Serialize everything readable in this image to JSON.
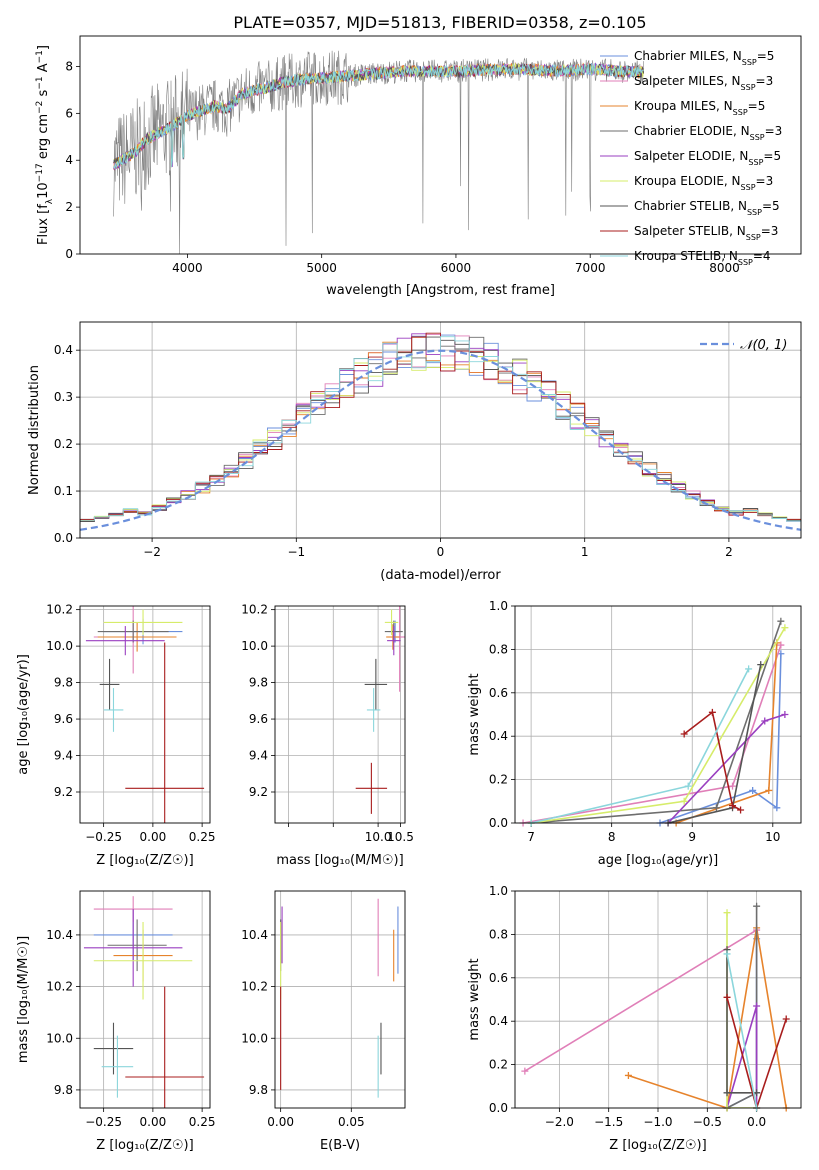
{
  "figure_title": "PLATE=0357, MJD=51813, FIBERID=0358, z=0.105",
  "colors": {
    "Chabrier MILES": "#6a8fdc",
    "Salpeter MILES": "#e07fb8",
    "Kroupa MILES": "#e6832c",
    "Chabrier ELODIE": "#6e6e6e",
    "Salpeter ELODIE": "#9a3fc0",
    "Kroupa ELODIE": "#d6ec6a",
    "Chabrier STELIB": "#555555",
    "Salpeter STELIB": "#a81d1d",
    "Kroupa STELIB": "#8bd6dc",
    "data": "#808080",
    "normal": "#6a8fdc"
  },
  "chart_data": [
    {
      "id": "spectrum",
      "type": "line",
      "title": "",
      "xlabel": "wavelength [Angstrom, rest frame]",
      "ylabel": "Flux [f",
      "ylabel_parts": [
        "Flux [f",
        "λ",
        "10",
        "−17",
        " erg cm",
        "−2",
        " s",
        "−1",
        " A",
        "−1",
        "]"
      ],
      "xlim": [
        3200,
        8570
      ],
      "ylim": [
        0,
        9.3
      ],
      "xticks": [
        4000,
        5000,
        6000,
        7000,
        8000
      ],
      "yticks": [
        0,
        2,
        4,
        6,
        8
      ],
      "grid": false,
      "legend_position": "right",
      "legend": [
        {
          "label": "Chabrier MILES, N",
          "sub": "SSP",
          "n": "=5",
          "key": "Chabrier MILES"
        },
        {
          "label": "Salpeter MILES, N",
          "sub": "SSP",
          "n": "=3",
          "key": "Salpeter MILES"
        },
        {
          "label": "Kroupa MILES, N",
          "sub": "SSP",
          "n": "=5",
          "key": "Kroupa MILES"
        },
        {
          "label": "Chabrier ELODIE, N",
          "sub": "SSP",
          "n": "=3",
          "key": "Chabrier ELODIE"
        },
        {
          "label": "Salpeter ELODIE, N",
          "sub": "SSP",
          "n": "=5",
          "key": "Salpeter ELODIE"
        },
        {
          "label": "Kroupa ELODIE, N",
          "sub": "SSP",
          "n": "=3",
          "key": "Kroupa ELODIE"
        },
        {
          "label": "Chabrier STELIB, N",
          "sub": "SSP",
          "n": "=5",
          "key": "Chabrier STELIB"
        },
        {
          "label": "Salpeter STELIB, N",
          "sub": "SSP",
          "n": "=3",
          "key": "Salpeter STELIB"
        },
        {
          "label": "Kroupa STELIB, N",
          "sub": "SSP",
          "n": "=4",
          "key": "Kroupa STELIB"
        }
      ],
      "model_continuum": [
        [
          3450,
          3.8
        ],
        [
          3600,
          4.3
        ],
        [
          3700,
          4.9
        ],
        [
          3800,
          5.2
        ],
        [
          3900,
          5.5
        ],
        [
          4000,
          5.9
        ],
        [
          4100,
          6.1
        ],
        [
          4200,
          6.3
        ],
        [
          4300,
          6.2
        ],
        [
          4400,
          6.8
        ],
        [
          4500,
          7.0
        ],
        [
          4600,
          7.1
        ],
        [
          4700,
          7.3
        ],
        [
          4800,
          7.4
        ],
        [
          4900,
          7.5
        ],
        [
          5000,
          7.5
        ],
        [
          5200,
          7.6
        ],
        [
          5400,
          7.7
        ],
        [
          5600,
          7.8
        ],
        [
          5800,
          7.8
        ],
        [
          6000,
          7.8
        ],
        [
          6200,
          7.85
        ],
        [
          6400,
          7.9
        ],
        [
          6600,
          7.85
        ],
        [
          6800,
          7.8
        ],
        [
          7000,
          7.9
        ],
        [
          7200,
          7.8
        ],
        [
          7400,
          7.75
        ]
      ]
    },
    {
      "id": "residuals",
      "type": "line",
      "title": "",
      "xlabel": "(data-model)/error",
      "ylabel": "Normed distribution",
      "xlim": [
        -2.5,
        2.5
      ],
      "ylim": [
        0,
        0.46
      ],
      "xticks": [
        -2,
        -1,
        0,
        1,
        2
      ],
      "yticks": [
        0.0,
        0.1,
        0.2,
        0.3,
        0.4
      ],
      "grid": true,
      "legend_position": "top-right",
      "legend": [
        {
          "label": "𝒩(0, 1)",
          "key": "normal"
        }
      ],
      "histogram_bin_width": 0.1
    },
    {
      "id": "age-vs-Z",
      "type": "scatter",
      "xlabel": "Z [log₁₀(Z/Z☉)]",
      "ylabel": "age  [log₁₀(age/yr)]",
      "xlim": [
        -0.37,
        0.29
      ],
      "ylim": [
        9.03,
        10.22
      ],
      "xticks": [
        -0.25,
        0.0,
        0.25
      ],
      "xtick_labels": [
        "−0.25",
        "0.00",
        "0.25"
      ],
      "yticks": [
        9.2,
        9.4,
        9.6,
        9.8,
        10.0,
        10.2
      ],
      "grid": true,
      "points": [
        {
          "key": "Chabrier MILES",
          "x": -0.05,
          "y": 10.08,
          "xerr": 0.2,
          "yerr": 0.07
        },
        {
          "key": "Salpeter MILES",
          "x": -0.1,
          "y": 10.05,
          "xerr": 0.2,
          "yerr": 0.2
        },
        {
          "key": "Kroupa MILES",
          "x": -0.08,
          "y": 10.05,
          "xerr": 0.2,
          "yerr": 0.08
        },
        {
          "key": "Chabrier ELODIE",
          "x": -0.1,
          "y": 10.08,
          "xerr": 0.18,
          "yerr": 0.06
        },
        {
          "key": "Salpeter ELODIE",
          "x": -0.14,
          "y": 10.03,
          "xerr": 0.2,
          "yerr": 0.08
        },
        {
          "key": "Kroupa ELODIE",
          "x": -0.05,
          "y": 10.13,
          "xerr": 0.2,
          "yerr": 0.07
        },
        {
          "key": "Chabrier STELIB",
          "x": -0.22,
          "y": 9.79,
          "xerr": 0.05,
          "yerr": 0.14
        },
        {
          "key": "Salpeter STELIB",
          "x": 0.06,
          "y": 9.22,
          "xerr": 0.2,
          "yerr": 0.8
        },
        {
          "key": "Kroupa STELIB",
          "x": -0.2,
          "y": 9.65,
          "xerr": 0.05,
          "yerr": 0.12
        }
      ]
    },
    {
      "id": "age-vs-mass",
      "type": "scatter",
      "xlabel": "mass [log₁₀(M/M☉)]",
      "ylabel": "",
      "xlim": [
        7.7,
        10.6
      ],
      "ylim": [
        9.03,
        10.22
      ],
      "xticks": [
        8.0,
        9.0,
        10.0,
        10.5
      ],
      "xtick_labels": [
        "",
        "",
        "10.0",
        "10.5"
      ],
      "yticks": [
        9.2,
        9.4,
        9.6,
        9.8,
        10.0,
        10.2
      ],
      "grid": true,
      "points": [
        {
          "key": "Chabrier MILES",
          "x": 10.38,
          "y": 10.08,
          "xerr": 0.15,
          "yerr": 0.06
        },
        {
          "key": "Salpeter MILES",
          "x": 10.48,
          "y": 10.05,
          "xerr": 0.15,
          "yerr": 0.3
        },
        {
          "key": "Kroupa MILES",
          "x": 10.33,
          "y": 10.05,
          "xerr": 0.15,
          "yerr": 0.07
        },
        {
          "key": "Chabrier ELODIE",
          "x": 10.35,
          "y": 10.08,
          "xerr": 0.2,
          "yerr": 0.06
        },
        {
          "key": "Salpeter ELODIE",
          "x": 10.35,
          "y": 10.03,
          "xerr": 0.15,
          "yerr": 0.08
        },
        {
          "key": "Kroupa ELODIE",
          "x": 10.3,
          "y": 10.13,
          "xerr": 0.15,
          "yerr": 0.07
        },
        {
          "key": "Chabrier STELIB",
          "x": 9.95,
          "y": 9.79,
          "xerr": 0.25,
          "yerr": 0.14
        },
        {
          "key": "Salpeter STELIB",
          "x": 9.85,
          "y": 9.22,
          "xerr": 0.35,
          "yerr": 0.14
        },
        {
          "key": "Kroupa STELIB",
          "x": 9.9,
          "y": 9.65,
          "xerr": 0.15,
          "yerr": 0.12
        }
      ]
    },
    {
      "id": "weight-vs-age",
      "type": "line",
      "xlabel": "age  [log₁₀(age/yr)]",
      "ylabel": "mass weight",
      "xlim": [
        6.8,
        10.35
      ],
      "ylim": [
        0,
        1
      ],
      "xticks": [
        7,
        8,
        9,
        10
      ],
      "yticks": [
        0.0,
        0.2,
        0.4,
        0.6,
        0.8,
        1.0
      ],
      "grid": true,
      "series": [
        {
          "key": "Chabrier MILES",
          "x": [
            8.6,
            9.75,
            10.05,
            10.1
          ],
          "y": [
            0.0,
            0.15,
            0.07,
            0.78
          ]
        },
        {
          "key": "Salpeter MILES",
          "x": [
            6.9,
            9.5,
            10.1
          ],
          "y": [
            0.0,
            0.17,
            0.82
          ]
        },
        {
          "key": "Kroupa MILES",
          "x": [
            8.8,
            9.95,
            10.05
          ],
          "y": [
            0.0,
            0.15,
            0.83
          ]
        },
        {
          "key": "Chabrier ELODIE",
          "x": [
            7.0,
            9.3,
            10.1
          ],
          "y": [
            0.0,
            0.07,
            0.93
          ]
        },
        {
          "key": "Salpeter ELODIE",
          "x": [
            8.7,
            9.9,
            10.15
          ],
          "y": [
            0.0,
            0.47,
            0.5
          ]
        },
        {
          "key": "Kroupa ELODIE",
          "x": [
            7.0,
            8.9,
            10.15
          ],
          "y": [
            0.0,
            0.1,
            0.9
          ]
        },
        {
          "key": "Chabrier STELIB",
          "x": [
            8.7,
            9.5,
            9.85
          ],
          "y": [
            0.0,
            0.07,
            0.73
          ]
        },
        {
          "key": "Salpeter STELIB",
          "x": [
            8.9,
            9.25,
            9.5,
            9.6
          ],
          "y": [
            0.41,
            0.51,
            0.08,
            0.06
          ]
        },
        {
          "key": "Kroupa STELIB",
          "x": [
            7.0,
            8.95,
            9.7
          ],
          "y": [
            0.0,
            0.17,
            0.71
          ]
        }
      ]
    },
    {
      "id": "mass-vs-Z",
      "type": "scatter",
      "xlabel": "Z [log₁₀(Z/Z☉)]",
      "ylabel": "mass [log₁₀(M/M☉)]",
      "xlim": [
        -0.37,
        0.29
      ],
      "ylim": [
        9.73,
        10.57
      ],
      "xticks": [
        -0.25,
        0.0,
        0.25
      ],
      "xtick_labels": [
        "−0.25",
        "0.00",
        "0.25"
      ],
      "yticks": [
        9.8,
        10.0,
        10.2,
        10.4
      ],
      "grid": true,
      "points": [
        {
          "key": "Chabrier MILES",
          "x": -0.1,
          "y": 10.4,
          "xerr": 0.2,
          "yerr": 0.1
        },
        {
          "key": "Salpeter MILES",
          "x": -0.1,
          "y": 10.5,
          "xerr": 0.2,
          "yerr": 0.05
        },
        {
          "key": "Kroupa MILES",
          "x": -0.05,
          "y": 10.32,
          "xerr": 0.15,
          "yerr": 0.1
        },
        {
          "key": "Chabrier ELODIE",
          "x": -0.08,
          "y": 10.36,
          "xerr": 0.15,
          "yerr": 0.1
        },
        {
          "key": "Salpeter ELODIE",
          "x": -0.1,
          "y": 10.35,
          "xerr": 0.25,
          "yerr": 0.15
        },
        {
          "key": "Kroupa ELODIE",
          "x": -0.05,
          "y": 10.3,
          "xerr": 0.25,
          "yerr": 0.15
        },
        {
          "key": "Chabrier STELIB",
          "x": -0.2,
          "y": 9.96,
          "xerr": 0.1,
          "yerr": 0.1
        },
        {
          "key": "Salpeter STELIB",
          "x": 0.06,
          "y": 9.85,
          "xerr": 0.2,
          "yerr": 0.35
        },
        {
          "key": "Kroupa STELIB",
          "x": -0.18,
          "y": 9.89,
          "xerr": 0.08,
          "yerr": 0.12
        }
      ]
    },
    {
      "id": "mass-vs-ebv",
      "type": "scatter",
      "xlabel": "E(B-V)",
      "ylabel": "",
      "xlim": [
        -0.004,
        0.088
      ],
      "ylim": [
        9.73,
        10.57
      ],
      "xticks": [
        0.0,
        0.05
      ],
      "xtick_labels": [
        "0.00",
        "0.05"
      ],
      "yticks": [
        9.8,
        10.0,
        10.2,
        10.4
      ],
      "grid": true,
      "points": [
        {
          "key": "Chabrier MILES",
          "x": 0.083,
          "y": 10.38,
          "xerr": 0,
          "yerr": 0.13
        },
        {
          "key": "Salpeter MILES",
          "x": 0.069,
          "y": 10.39,
          "xerr": 0,
          "yerr": 0.15
        },
        {
          "key": "Kroupa MILES",
          "x": 0.08,
          "y": 10.32,
          "xerr": 0,
          "yerr": 0.1
        },
        {
          "key": "Chabrier ELODIE",
          "x": 0.0,
          "y": 10.36,
          "xerr": 0,
          "yerr": 0.1
        },
        {
          "key": "Salpeter ELODIE",
          "x": 0.001,
          "y": 10.4,
          "xerr": 0,
          "yerr": 0.11
        },
        {
          "key": "Kroupa ELODIE",
          "x": 0.0,
          "y": 10.3,
          "xerr": 0,
          "yerr": 0.15
        },
        {
          "key": "Chabrier STELIB",
          "x": 0.071,
          "y": 9.96,
          "xerr": 0,
          "yerr": 0.1
        },
        {
          "key": "Salpeter STELIB",
          "x": 0.0,
          "y": 10.0,
          "xerr": 0,
          "yerr": 0.2
        },
        {
          "key": "Kroupa STELIB",
          "x": 0.069,
          "y": 9.89,
          "xerr": 0,
          "yerr": 0.12
        }
      ]
    },
    {
      "id": "weight-vs-Z",
      "type": "line",
      "xlabel": "Z [log₁₀(Z/Z☉)]",
      "ylabel": "mass weight",
      "xlim": [
        -2.45,
        0.45
      ],
      "ylim": [
        0,
        1
      ],
      "xticks": [
        -2.0,
        -1.5,
        -1.0,
        -0.5,
        0.0
      ],
      "xtick_labels": [
        "−2.0",
        "−1.5",
        "−1.0",
        "−0.5",
        "0.0"
      ],
      "yticks": [
        0.0,
        0.2,
        0.4,
        0.6,
        0.8,
        1.0
      ],
      "grid": true,
      "series": [
        {
          "key": "Chabrier MILES",
          "x": [
            -0.3,
            0.0,
            0.0
          ],
          "y": [
            0.0,
            0.07,
            0.78
          ]
        },
        {
          "key": "Salpeter MILES",
          "x": [
            -2.35,
            0.0
          ],
          "y": [
            0.17,
            0.82
          ]
        },
        {
          "key": "Kroupa MILES",
          "x": [
            -1.3,
            -0.3,
            0.0,
            0.3
          ],
          "y": [
            0.15,
            0.0,
            0.83,
            0.0
          ]
        },
        {
          "key": "Chabrier ELODIE",
          "x": [
            -0.3,
            0.0,
            0.0
          ],
          "y": [
            0.0,
            0.07,
            0.93
          ]
        },
        {
          "key": "Salpeter ELODIE",
          "x": [
            -0.3,
            0.0,
            0.0
          ],
          "y": [
            0.0,
            0.47,
            0.0
          ]
        },
        {
          "key": "Kroupa ELODIE",
          "x": [
            -0.3,
            -0.3,
            0.0
          ],
          "y": [
            0.9,
            0.0,
            0.0
          ]
        },
        {
          "key": "Chabrier STELIB",
          "x": [
            -0.3,
            -0.3,
            0.0
          ],
          "y": [
            0.73,
            0.07,
            0.07
          ]
        },
        {
          "key": "Salpeter STELIB",
          "x": [
            -0.3,
            0.0,
            0.3
          ],
          "y": [
            0.51,
            0.0,
            0.41
          ]
        },
        {
          "key": "Kroupa STELIB",
          "x": [
            -0.3,
            0.0
          ],
          "y": [
            0.71,
            0.0
          ]
        }
      ]
    }
  ]
}
